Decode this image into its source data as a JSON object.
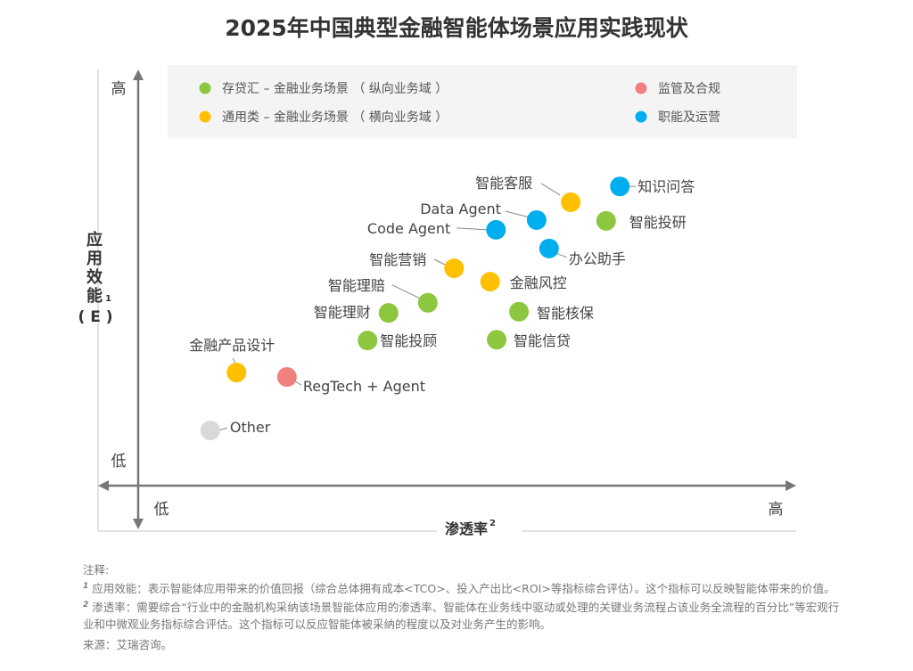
{
  "chart_data": {
    "type": "scatter",
    "title": "2025年中国典型金融智能体场景应用实践现状",
    "xlabel": "渗透率",
    "xlabel_sup": "2",
    "ylabel": "应用效能",
    "ylabel_sup": "1",
    "ylabel_sub": "( E )",
    "x_ticks": {
      "low": "低",
      "high": "高"
    },
    "y_ticks": {
      "low": "低",
      "high": "高"
    },
    "xlim": [
      0,
      100
    ],
    "ylim": [
      0,
      100
    ],
    "grid": false,
    "legend_position": "top",
    "legend": [
      {
        "key": "vertical",
        "label": "存贷汇 – 金融业务场景 （ 纵向业务域 ）",
        "color": "#8DC63F"
      },
      {
        "key": "horizontal",
        "label": "通用类 – 金融业务场景 （ 横向业务域 ）",
        "color": "#FFC000"
      },
      {
        "key": "regulation",
        "label": "监管及合规",
        "color": "#F08080"
      },
      {
        "key": "operations",
        "label": "职能及运营",
        "color": "#00AEEF"
      }
    ],
    "other_color": "#D9D9D9",
    "points": [
      {
        "label": "知识问答",
        "category": "operations",
        "x": 73.5,
        "y": 73.8
      },
      {
        "label": "智能客服",
        "category": "horizontal",
        "x": 66.0,
        "y": 69.9
      },
      {
        "label": "智能投研",
        "category": "vertical",
        "x": 71.4,
        "y": 65.3
      },
      {
        "label": "Data Agent",
        "category": "operations",
        "x": 60.8,
        "y": 65.5
      },
      {
        "label": "Code Agent",
        "category": "operations",
        "x": 54.6,
        "y": 63.1
      },
      {
        "label": "办公助手",
        "category": "operations",
        "x": 62.7,
        "y": 58.5
      },
      {
        "label": "智能营销",
        "category": "horizontal",
        "x": 48.2,
        "y": 53.6
      },
      {
        "label": "金融风控",
        "category": "horizontal",
        "x": 53.7,
        "y": 50.3
      },
      {
        "label": "智能理赔",
        "category": "vertical",
        "x": 44.2,
        "y": 45.1
      },
      {
        "label": "智能理财",
        "category": "vertical",
        "x": 38.2,
        "y": 42.6
      },
      {
        "label": "智能核保",
        "category": "vertical",
        "x": 58.1,
        "y": 42.9
      },
      {
        "label": "智能投顾",
        "category": "vertical",
        "x": 35.0,
        "y": 35.8
      },
      {
        "label": "智能信贷",
        "category": "vertical",
        "x": 54.7,
        "y": 36.0
      },
      {
        "label": "金融产品设计",
        "category": "horizontal",
        "x": 15.0,
        "y": 27.9
      },
      {
        "label": "RegTech + Agent",
        "category": "regulation",
        "x": 22.7,
        "y": 26.8
      },
      {
        "label": "Other",
        "category": "other",
        "x": 11.0,
        "y": 13.6
      }
    ]
  },
  "notes": {
    "heading": "注释:",
    "note1_num": "1",
    "note1": "应用效能：表示智能体应用带来的价值回报（综合总体拥有成本<TCO>、投入产出比<ROI>等指标综合评估）。这个指标可以反映智能体带来的价值。",
    "note2_num": "2",
    "note2": "渗透率：需要综合“行业中的金融机构采纳该场景智能体应用的渗透率、智能体在业务线中驱动或处理的关键业务流程占该业务全流程的百分比”等宏观行业和中微观业务指标综合评估。这个指标可以反应智能体被采纳的程度以及对业务产生的影响。",
    "source": "来源：艾瑞咨询。"
  }
}
